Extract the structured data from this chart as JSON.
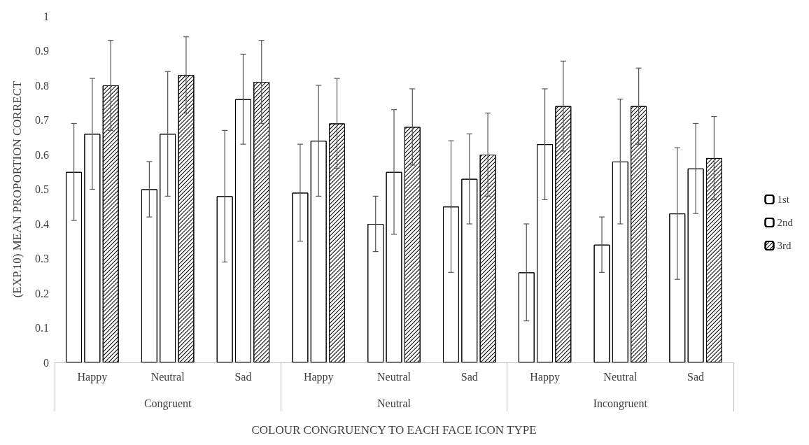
{
  "chart_data": {
    "type": "bar",
    "ylabel": "(EXP.10) MEAN PROPORTION CORRECT",
    "xlabel": "COLOUR CONGRUENCY TO EACH FACE ICON TYPE",
    "categories": [
      "Happy",
      "Neutral",
      "Sad",
      "Happy",
      "Neutral",
      "Sad",
      "Happy",
      "Neutral",
      "Sad"
    ],
    "annotations": [
      "Congruent",
      "Neutral",
      "Incongruent"
    ],
    "series": [
      {
        "name": "1st",
        "color": "#ffffff",
        "values": [
          0.55,
          0.5,
          0.48,
          0.49,
          0.4,
          0.45,
          0.26,
          0.34,
          0.43
        ],
        "errors": [
          0.14,
          0.08,
          0.19,
          0.14,
          0.08,
          0.19,
          0.14,
          0.08,
          0.19
        ]
      },
      {
        "name": "2nd",
        "color": "#ffffff",
        "values": [
          0.66,
          0.66,
          0.76,
          0.64,
          0.55,
          0.53,
          0.63,
          0.58,
          0.56
        ],
        "errors": [
          0.16,
          0.18,
          0.13,
          0.16,
          0.18,
          0.13,
          0.16,
          0.18,
          0.13
        ]
      },
      {
        "name": "3rd",
        "color": "#ffffff",
        "values": [
          0.8,
          0.83,
          0.81,
          0.69,
          0.68,
          0.6,
          0.74,
          0.74,
          0.59
        ],
        "errors": [
          0.13,
          0.11,
          0.12,
          0.13,
          0.11,
          0.12,
          0.13,
          0.11,
          0.12
        ]
      }
    ],
    "ylim": [
      0,
      1
    ],
    "yticks": [
      0,
      0.1,
      0.2,
      0.3,
      0.4,
      0.5,
      0.6,
      0.7,
      0.8,
      0.9,
      1
    ],
    "grid": false,
    "legend": "right"
  }
}
